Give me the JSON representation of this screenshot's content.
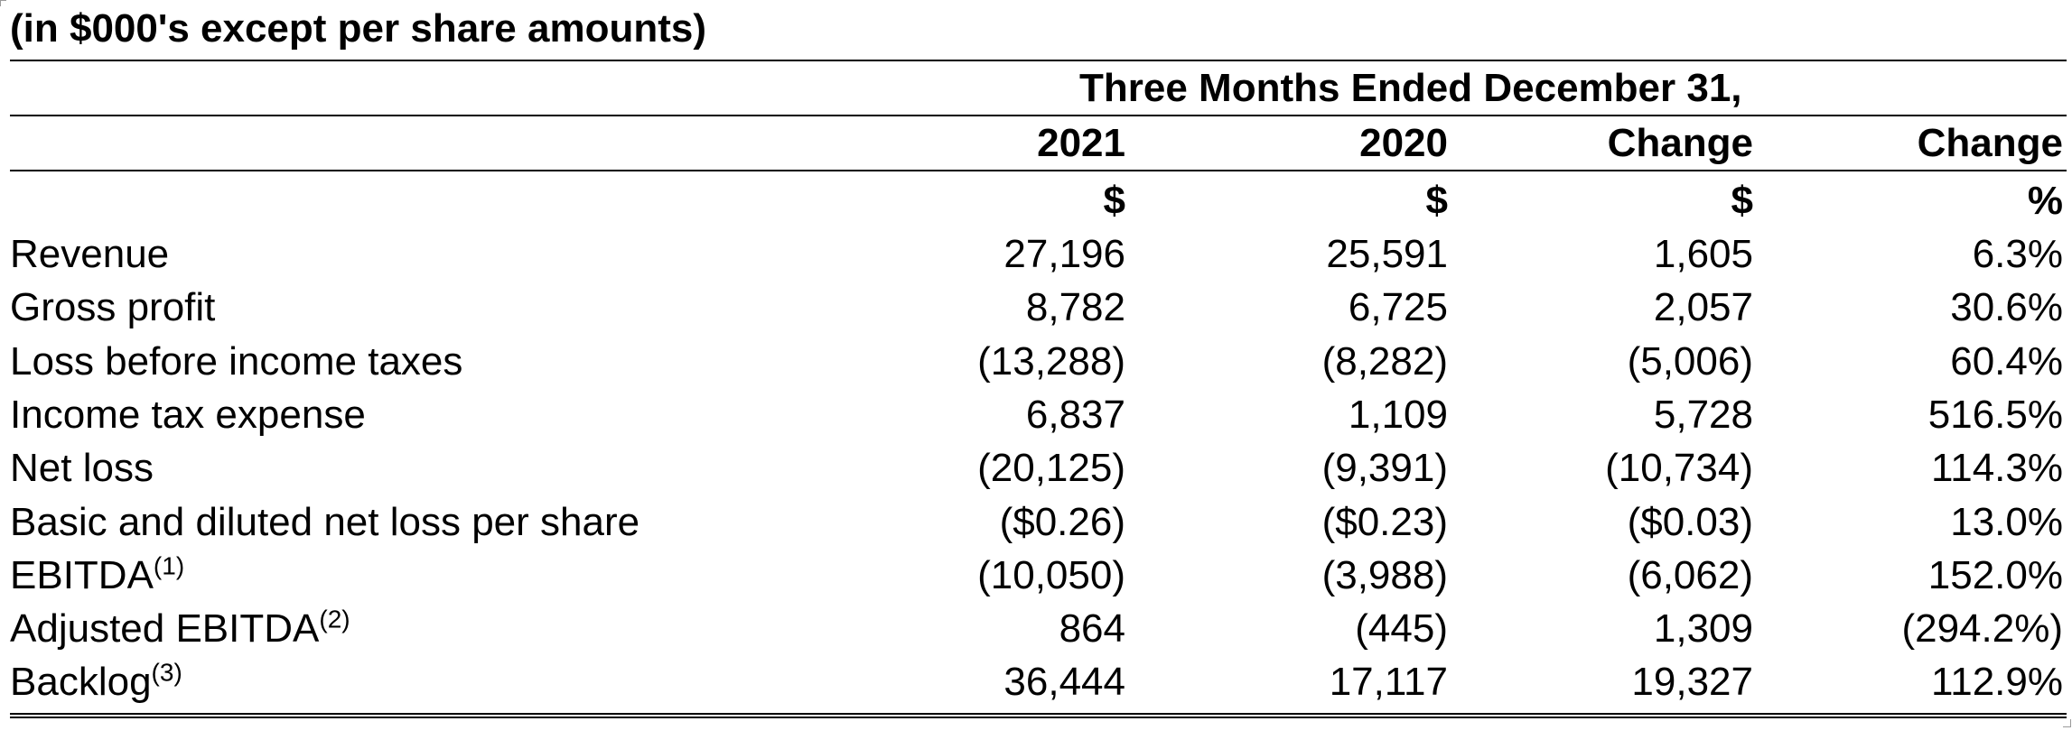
{
  "caption": "(in $000's except per share amounts)",
  "group_header": "Three Months Ended December 31,",
  "column_headers": [
    "2021",
    "2020",
    "Change",
    "Change"
  ],
  "units": [
    "$",
    "$",
    "$",
    "%"
  ],
  "rows": [
    {
      "label": "Revenue",
      "footnote": "",
      "values": [
        "27,196",
        "25,591",
        "1,605",
        "6.3%"
      ]
    },
    {
      "label": "Gross profit",
      "footnote": "",
      "values": [
        "8,782",
        "6,725",
        "2,057",
        "30.6%"
      ]
    },
    {
      "label": "Loss before income taxes",
      "footnote": "",
      "values": [
        "(13,288)",
        "(8,282)",
        "(5,006)",
        "60.4%"
      ]
    },
    {
      "label": "Income tax expense",
      "footnote": "",
      "values": [
        "6,837",
        "1,109",
        "5,728",
        "516.5%"
      ]
    },
    {
      "label": "Net loss",
      "footnote": "",
      "values": [
        "(20,125)",
        "(9,391)",
        "(10,734)",
        "114.3%"
      ]
    },
    {
      "label": "Basic and diluted net loss per share",
      "footnote": "",
      "values": [
        "($0.26)",
        "($0.23)",
        "($0.03)",
        "13.0%"
      ]
    },
    {
      "label": "EBITDA",
      "footnote": "(1)",
      "values": [
        "(10,050)",
        "(3,988)",
        "(6,062)",
        "152.0%"
      ]
    },
    {
      "label": "Adjusted EBITDA",
      "footnote": "(2)",
      "values": [
        "864",
        "(445)",
        "1,309",
        "(294.2%)"
      ]
    },
    {
      "label": "Backlog",
      "footnote": "(3)",
      "values": [
        "36,444",
        "17,117",
        "19,327",
        "112.9%"
      ]
    }
  ]
}
